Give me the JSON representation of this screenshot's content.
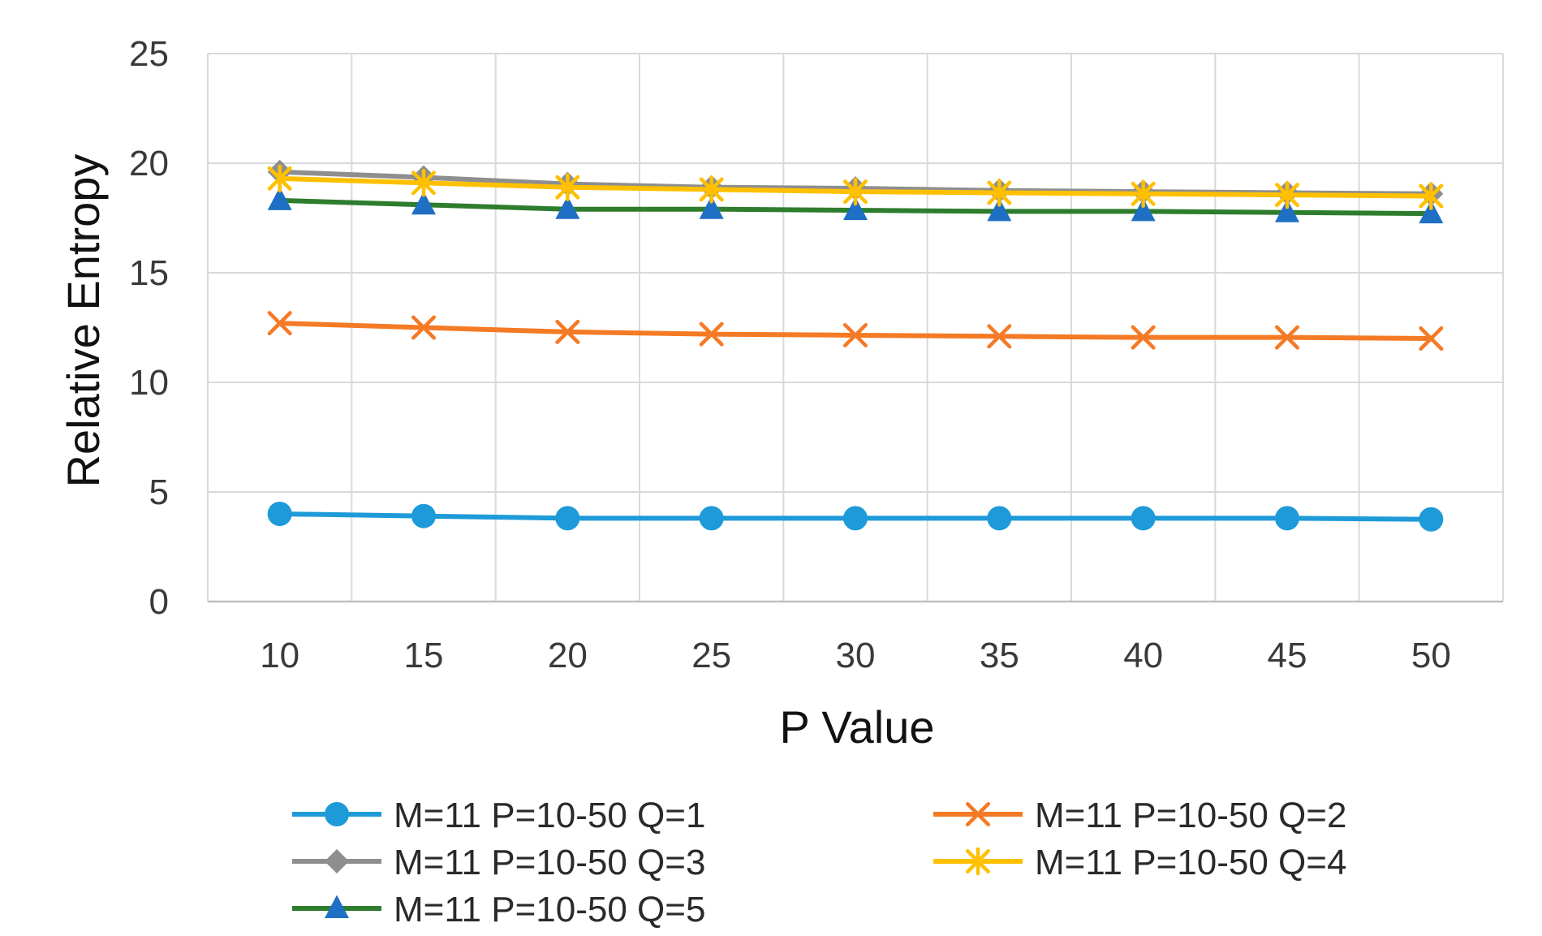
{
  "chart_data": {
    "type": "line",
    "title": "",
    "xlabel": "P Value",
    "ylabel": "Relative Entropy",
    "x": [
      10,
      15,
      20,
      25,
      30,
      35,
      40,
      45,
      50
    ],
    "xticks": [
      "10",
      "15",
      "20",
      "25",
      "30",
      "35",
      "40",
      "45",
      "50"
    ],
    "ylim": [
      0,
      25
    ],
    "yticks": [
      "0",
      "5",
      "10",
      "15",
      "20",
      "25"
    ],
    "grid": true,
    "legend_position": "bottom",
    "series": [
      {
        "name": "M=11 P=10-50 Q=1",
        "color": "#1f9ad8",
        "marker": "circle",
        "values": [
          4.0,
          3.9,
          3.8,
          3.8,
          3.8,
          3.8,
          3.8,
          3.8,
          3.75
        ]
      },
      {
        "name": "M=11 P=10-50 Q=2",
        "color": "#f47a25",
        "marker": "x",
        "values": [
          12.7,
          12.5,
          12.3,
          12.2,
          12.15,
          12.1,
          12.05,
          12.05,
          12.0
        ]
      },
      {
        "name": "M=11 P=10-50 Q=3",
        "color": "#8e8e8e",
        "marker": "diamond",
        "values": [
          19.6,
          19.35,
          19.05,
          18.9,
          18.85,
          18.75,
          18.7,
          18.65,
          18.6
        ]
      },
      {
        "name": "M=11 P=10-50 Q=4",
        "color": "#ffc000",
        "marker": "asterisk",
        "values": [
          19.3,
          19.1,
          18.9,
          18.8,
          18.7,
          18.65,
          18.6,
          18.55,
          18.5
        ]
      },
      {
        "name": "M=11 P=10-50 Q=5",
        "color": "#2e7d2e",
        "marker_color": "#1f6fc5",
        "marker": "triangle",
        "values": [
          18.3,
          18.1,
          17.9,
          17.9,
          17.85,
          17.8,
          17.8,
          17.75,
          17.7
        ]
      }
    ]
  }
}
